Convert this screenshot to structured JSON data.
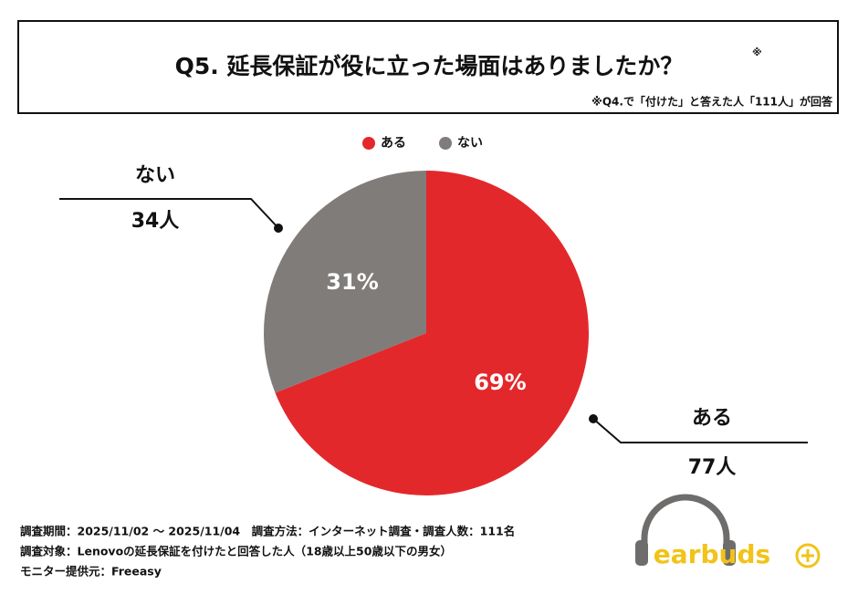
{
  "chart_data": {
    "type": "pie",
    "title": "Q5. 延長保証が役に立った場面はありましたか？",
    "title_mark": "※",
    "note": "※Q4.で「付けた」と答えた人「111人」が回答",
    "categories": [
      "ある",
      "ない"
    ],
    "values": [
      69,
      31
    ],
    "value_labels": [
      "69%",
      "31%"
    ],
    "counts": [
      77,
      34
    ],
    "count_labels": [
      "77人",
      "34人"
    ],
    "colors": [
      "#e3282c",
      "#807c7a"
    ],
    "footer": [
      "調査期間：2025/11/02 〜 2025/11/04　調査方法：インターネット調査・調査人数：111名",
      "調査対象：Lenovoの延長保証を付けたと回答した人（18歳以上50歳以下の男女）",
      "モニター提供元：Freeasy"
    ],
    "logo": "earbuds"
  }
}
